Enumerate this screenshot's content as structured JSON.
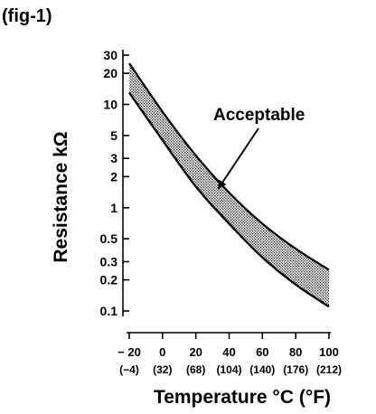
{
  "figure_label": "(fig-1)",
  "chart_data": {
    "type": "area",
    "title": "",
    "xlabel": "Temperature °C (°F)",
    "ylabel": "Resistance kΩ",
    "y_scale": "log",
    "xlim": [
      -20,
      100
    ],
    "ylim": [
      0.1,
      30
    ],
    "grid": false,
    "x_ticks": [
      -20,
      0,
      20,
      40,
      60,
      80,
      100
    ],
    "x_tick_labels": [
      "− 20",
      "0",
      "20",
      "40",
      "60",
      "80",
      "100"
    ],
    "x_tick_labels_f": [
      "(−4)",
      "(32)",
      "(68)",
      "(104)",
      "(140)",
      "(176)",
      "(212)"
    ],
    "y_ticks": [
      0.1,
      0.2,
      0.3,
      0.5,
      1,
      2,
      3,
      5,
      10,
      20,
      30
    ],
    "y_tick_labels": [
      "0.1",
      "0.2",
      "0.3",
      "0.5",
      "1",
      "2",
      "3",
      "5",
      "10",
      "20",
      "30"
    ],
    "band": {
      "annotation": "Acceptable",
      "x": [
        -20,
        0,
        20,
        40,
        60,
        80,
        100
      ],
      "upper": [
        25,
        8.5,
        3.2,
        1.4,
        0.7,
        0.4,
        0.25
      ],
      "lower": [
        13,
        4.5,
        1.6,
        0.7,
        0.33,
        0.18,
        0.11
      ]
    }
  }
}
